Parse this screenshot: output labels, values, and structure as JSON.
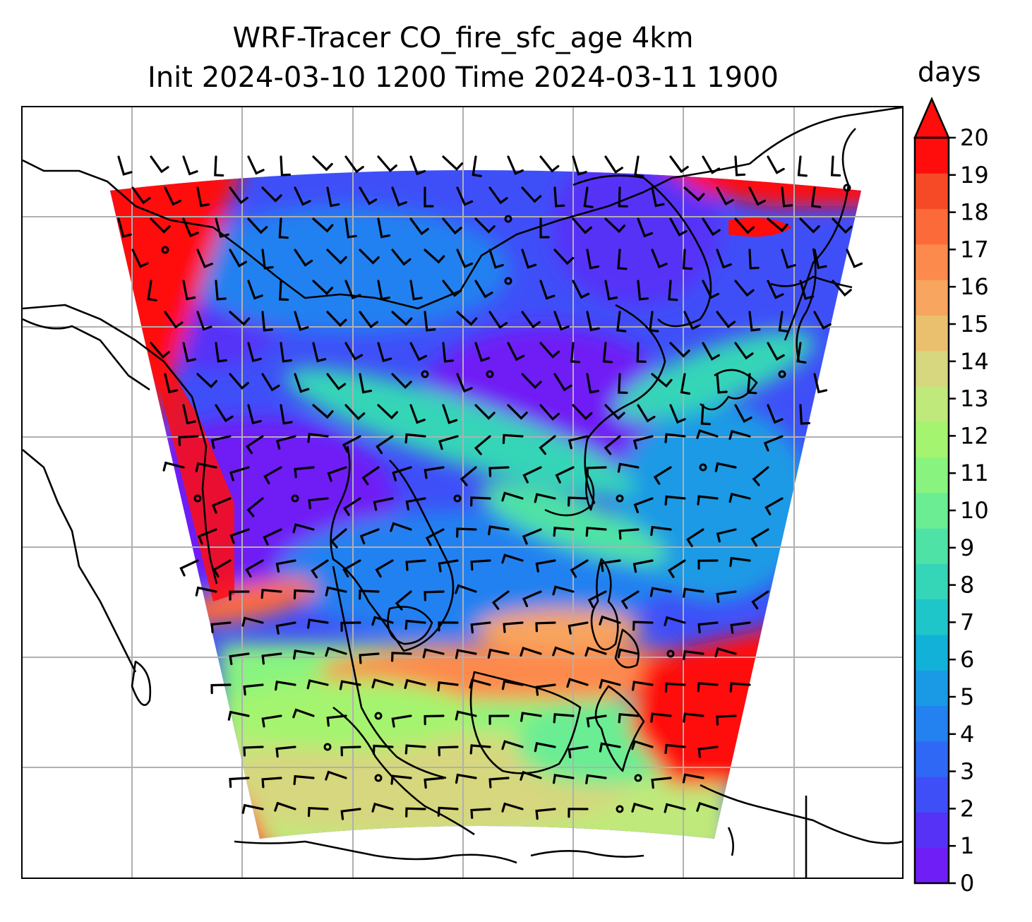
{
  "title": {
    "line1": "WRF-Tracer CO_fire_sfc_age 4km",
    "line2": "Init 2024-03-10 1200 Time 2024-03-11 1900"
  },
  "colorbar": {
    "units": "days",
    "ticks": [
      "0",
      "1",
      "2",
      "3",
      "4",
      "5",
      "6",
      "7",
      "8",
      "9",
      "10",
      "11",
      "12",
      "13",
      "14",
      "15",
      "16",
      "17",
      "18",
      "19",
      "20"
    ],
    "extend": "max",
    "colors": [
      "#6f1ef5",
      "#5632f7",
      "#3f4ff8",
      "#3068f6",
      "#2481f0",
      "#1a9ae5",
      "#11b1d8",
      "#1ec5c9",
      "#35d5b8",
      "#4fe2a6",
      "#6bed93",
      "#88f47f",
      "#a4f46f",
      "#bfe97a",
      "#d6d77e",
      "#eac06f",
      "#f7a55f",
      "#fd8a4d",
      "#fd6a3a",
      "#f64a27",
      "#ff0d0d"
    ],
    "over_color": "#ff0d0d"
  },
  "map": {
    "field_name": "CO_fire_sfc_age",
    "units": "days",
    "gridlines": "on",
    "coastlines": "on",
    "wind_barbs": "on",
    "region_notes": "old-age air (red, >20 days) north-west corner and south-east; young air (violet/blue) over mainland Asia; older green-yellow air in the south"
  }
}
